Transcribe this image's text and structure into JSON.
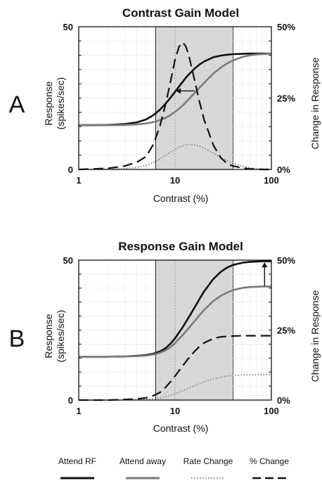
{
  "chart_data": [
    {
      "type": "line",
      "panel_label": "A",
      "title": "Contrast Gain Model",
      "xlabel": "Contrast (%)",
      "ylabel": "Response (spikes/sec)",
      "y2label": "Change in Response",
      "xscale": "log",
      "xlim": [
        1,
        100
      ],
      "ylim": [
        0,
        50
      ],
      "y2lim": [
        0,
        50
      ],
      "xticks": [
        "1",
        "10",
        "100"
      ],
      "yticks": [
        "0",
        "50"
      ],
      "y2ticks": [
        "0%",
        "25%",
        "50%"
      ],
      "shaded_x_range": [
        6.3,
        40
      ],
      "x": [
        1,
        2,
        3,
        4,
        5,
        6,
        7,
        8,
        9,
        10,
        11,
        12,
        13,
        14,
        16,
        18,
        20,
        25,
        30,
        35,
        40,
        50,
        60,
        70,
        80,
        100
      ],
      "series": [
        {
          "name": "Attend RF",
          "axis": "left",
          "values": [
            15.5,
            15.6,
            15.9,
            16.5,
            17.5,
            19.1,
            21.0,
            23.1,
            25.2,
            27.2,
            29.1,
            30.7,
            32.2,
            33.4,
            35.4,
            36.8,
            37.8,
            39.3,
            39.9,
            40.2,
            40.4,
            40.5,
            40.6,
            40.6,
            40.6,
            40.6
          ]
        },
        {
          "name": "Attend away",
          "axis": "left",
          "values": [
            15.5,
            15.5,
            15.6,
            15.8,
            16.1,
            16.6,
            17.3,
            18.1,
            19.1,
            20.2,
            21.3,
            22.4,
            23.6,
            24.7,
            26.8,
            28.7,
            30.3,
            33.6,
            35.8,
            37.2,
            38.2,
            39.4,
            40.0,
            40.3,
            40.4,
            40.6
          ]
        },
        {
          "name": "Rate Change",
          "axis": "left",
          "values": [
            0,
            0.1,
            0.3,
            0.7,
            1.4,
            2.5,
            3.7,
            5.0,
            6.1,
            7.0,
            7.8,
            8.3,
            8.6,
            8.7,
            8.6,
            8.1,
            7.5,
            5.7,
            4.1,
            3.0,
            2.2,
            1.1,
            0.6,
            0.3,
            0.2,
            0
          ]
        },
        {
          "name": "% Change",
          "axis": "right",
          "values": [
            0,
            0.4,
            1.2,
            2.5,
            4.5,
            9.0,
            15.5,
            23.0,
            31.0,
            38.5,
            43.0,
            44.5,
            43.0,
            39.5,
            31.0,
            23.5,
            17.5,
            8.5,
            4.0,
            2.0,
            1.2,
            0.5,
            0.2,
            0.1,
            0,
            0
          ]
        }
      ]
    },
    {
      "type": "line",
      "panel_label": "B",
      "title": "Response Gain Model",
      "xlabel": "Contrast (%)",
      "ylabel": "Response (spikes/sec)",
      "y2label": "Change in Response",
      "xscale": "log",
      "xlim": [
        1,
        100
      ],
      "ylim": [
        0,
        50
      ],
      "y2lim": [
        0,
        50
      ],
      "xticks": [
        "1",
        "10",
        "100"
      ],
      "yticks": [
        "0",
        "50"
      ],
      "y2ticks": [
        "0%",
        "25%",
        "50%"
      ],
      "shaded_x_range": [
        6.3,
        40
      ],
      "x": [
        1,
        2,
        3,
        4,
        5,
        6,
        7,
        8,
        9,
        10,
        12,
        14,
        16,
        18,
        20,
        25,
        30,
        35,
        40,
        50,
        60,
        70,
        80,
        100
      ],
      "series": [
        {
          "name": "Attend RF",
          "axis": "left",
          "values": [
            15.5,
            15.5,
            15.6,
            15.8,
            16.1,
            16.6,
            17.4,
            18.6,
            20.2,
            22.1,
            26.0,
            29.8,
            33.2,
            36.2,
            38.8,
            43.3,
            45.9,
            47.4,
            48.3,
            49.1,
            49.4,
            49.5,
            49.6,
            49.6
          ]
        },
        {
          "name": "Attend away",
          "axis": "left",
          "values": [
            15.5,
            15.5,
            15.6,
            15.7,
            15.9,
            16.3,
            16.9,
            17.8,
            19.0,
            20.4,
            23.2,
            25.9,
            28.3,
            30.4,
            32.2,
            35.4,
            37.3,
            38.5,
            39.3,
            40.1,
            40.4,
            40.5,
            40.6,
            40.6
          ]
        },
        {
          "name": "Rate Change",
          "axis": "left",
          "values": [
            0,
            0,
            0.1,
            0.2,
            0.3,
            0.5,
            0.8,
            1.2,
            1.7,
            2.2,
            3.3,
            4.3,
            5.2,
            5.9,
            6.5,
            7.6,
            8.2,
            8.6,
            8.8,
            9.0,
            9.1,
            9.1,
            9.1,
            9.1
          ]
        },
        {
          "name": "% Change",
          "axis": "right",
          "values": [
            0,
            0,
            0.2,
            0.4,
            0.8,
            1.6,
            2.8,
            4.6,
            6.6,
            8.6,
            12.2,
            15.2,
            17.5,
            19.2,
            20.4,
            22.0,
            22.6,
            22.8,
            22.9,
            23.0,
            23.0,
            23.0,
            23.0,
            23.0
          ]
        }
      ]
    }
  ],
  "legend": [
    {
      "label": "Attend RF",
      "style": "solid-black",
      "color": "#111111"
    },
    {
      "label": "Attend away",
      "style": "solid-gray",
      "color": "#7a7a7a"
    },
    {
      "label": "Rate Change",
      "style": "dotted-gray",
      "color": "#8a8a8a"
    },
    {
      "label": "% Change",
      "style": "dashed-black",
      "color": "#111111"
    }
  ],
  "colors": {
    "shade": "#d8d8d8",
    "grid": "#c8c8c8",
    "attend_rf": "#111111",
    "attend_away": "#7a7a7a",
    "rate_change": "#8a8a8a",
    "pct_change": "#111111"
  }
}
